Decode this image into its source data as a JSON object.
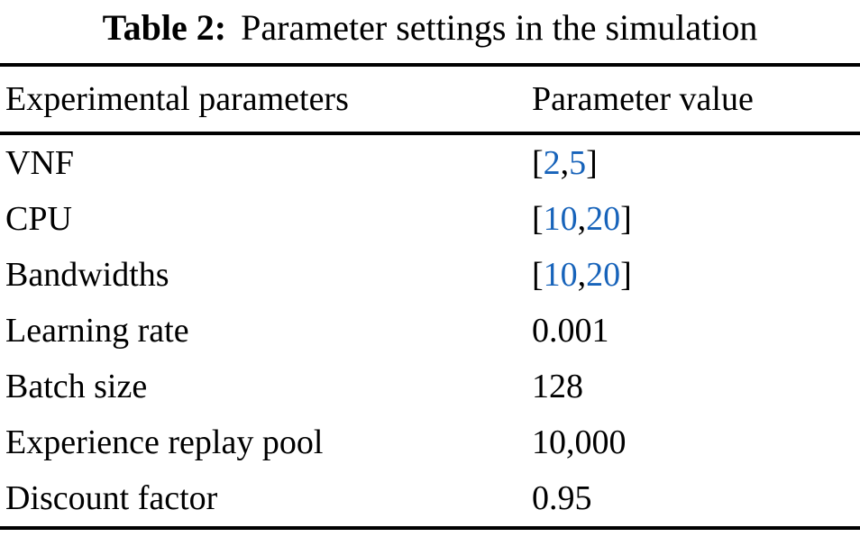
{
  "caption": {
    "label": "Table 2:",
    "text": "Parameter settings in the simulation"
  },
  "colors": {
    "link_blue": "#1763ba",
    "text": "#000000"
  },
  "table": {
    "headers": [
      "Experimental parameters",
      "Parameter value"
    ],
    "rows": [
      {
        "param": "VNF",
        "value_parts": [
          {
            "text": "["
          },
          {
            "text": "2",
            "blue": true
          },
          {
            "text": ","
          },
          {
            "text": "5",
            "blue": true
          },
          {
            "text": "]"
          }
        ]
      },
      {
        "param": "CPU",
        "value_parts": [
          {
            "text": "["
          },
          {
            "text": "10",
            "blue": true
          },
          {
            "text": ","
          },
          {
            "text": "20",
            "blue": true
          },
          {
            "text": "]"
          }
        ]
      },
      {
        "param": "Bandwidths",
        "value_parts": [
          {
            "text": "["
          },
          {
            "text": "10",
            "blue": true
          },
          {
            "text": ","
          },
          {
            "text": "20",
            "blue": true
          },
          {
            "text": "]"
          }
        ]
      },
      {
        "param": "Learning rate",
        "value_parts": [
          {
            "text": "0.001"
          }
        ]
      },
      {
        "param": "Batch size",
        "value_parts": [
          {
            "text": "128"
          }
        ]
      },
      {
        "param": "Experience replay pool",
        "value_parts": [
          {
            "text": "10,000"
          }
        ]
      },
      {
        "param": "Discount factor",
        "value_parts": [
          {
            "text": "0.95"
          }
        ]
      }
    ]
  }
}
